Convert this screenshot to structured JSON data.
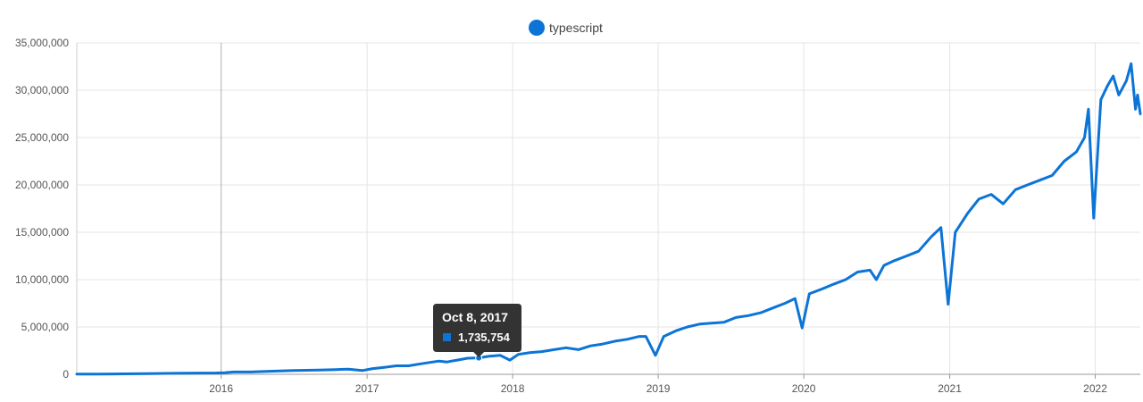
{
  "chart_data": {
    "type": "line",
    "legend_position": "top-center",
    "grid": true,
    "ylim": [
      0,
      35000000
    ],
    "xlim": [
      "2015-01-04",
      "2022-04-24"
    ],
    "y_ticks": [
      0,
      5000000,
      10000000,
      15000000,
      20000000,
      25000000,
      30000000,
      35000000
    ],
    "y_tick_labels": [
      "0",
      "5,000,000",
      "10,000,000",
      "15,000,000",
      "20,000,000",
      "25,000,000",
      "30,000,000",
      "35,000,000"
    ],
    "x_ticks": [
      "2016-01-01",
      "2017-01-01",
      "2018-01-01",
      "2019-01-01",
      "2020-01-01",
      "2021-01-01",
      "2022-01-01"
    ],
    "x_tick_labels": [
      "2016",
      "2017",
      "2018",
      "2019",
      "2020",
      "2021",
      "2022"
    ],
    "colors": {
      "series": "#0b74d6",
      "tooltip_bg": "#333333",
      "grid": "#e4e4e4",
      "axis": "#9a9a9a"
    },
    "series": [
      {
        "name": "typescript",
        "points": [
          [
            "2015-01-04",
            20000
          ],
          [
            "2015-03-01",
            30000
          ],
          [
            "2015-05-01",
            50000
          ],
          [
            "2015-07-01",
            70000
          ],
          [
            "2015-09-01",
            100000
          ],
          [
            "2015-11-01",
            130000
          ],
          [
            "2015-12-20",
            140000
          ],
          [
            "2016-01-10",
            170000
          ],
          [
            "2016-02-01",
            250000
          ],
          [
            "2016-03-15",
            250000
          ],
          [
            "2016-05-01",
            320000
          ],
          [
            "2016-07-01",
            400000
          ],
          [
            "2016-09-01",
            450000
          ],
          [
            "2016-10-15",
            500000
          ],
          [
            "2016-11-15",
            550000
          ],
          [
            "2016-12-20",
            400000
          ],
          [
            "2017-01-15",
            600000
          ],
          [
            "2017-02-15",
            750000
          ],
          [
            "2017-03-15",
            900000
          ],
          [
            "2017-04-15",
            900000
          ],
          [
            "2017-05-15",
            1100000
          ],
          [
            "2017-06-15",
            1300000
          ],
          [
            "2017-07-01",
            1400000
          ],
          [
            "2017-07-20",
            1300000
          ],
          [
            "2017-08-15",
            1500000
          ],
          [
            "2017-09-10",
            1700000
          ],
          [
            "2017-10-08",
            1735754
          ],
          [
            "2017-11-01",
            1900000
          ],
          [
            "2017-12-01",
            2000000
          ],
          [
            "2017-12-25",
            1500000
          ],
          [
            "2018-01-15",
            2100000
          ],
          [
            "2018-02-15",
            2300000
          ],
          [
            "2018-03-15",
            2400000
          ],
          [
            "2018-04-15",
            2600000
          ],
          [
            "2018-05-15",
            2800000
          ],
          [
            "2018-06-15",
            2600000
          ],
          [
            "2018-07-15",
            3000000
          ],
          [
            "2018-08-15",
            3200000
          ],
          [
            "2018-09-15",
            3500000
          ],
          [
            "2018-10-15",
            3700000
          ],
          [
            "2018-11-15",
            4000000
          ],
          [
            "2018-12-01",
            4000000
          ],
          [
            "2018-12-25",
            2000000
          ],
          [
            "2019-01-15",
            4000000
          ],
          [
            "2019-02-15",
            4600000
          ],
          [
            "2019-03-15",
            5000000
          ],
          [
            "2019-04-15",
            5300000
          ],
          [
            "2019-05-15",
            5400000
          ],
          [
            "2019-06-15",
            5500000
          ],
          [
            "2019-07-15",
            6000000
          ],
          [
            "2019-08-15",
            6200000
          ],
          [
            "2019-09-15",
            6500000
          ],
          [
            "2019-10-15",
            7000000
          ],
          [
            "2019-11-15",
            7500000
          ],
          [
            "2019-12-10",
            8000000
          ],
          [
            "2019-12-28",
            4900000
          ],
          [
            "2020-01-15",
            8500000
          ],
          [
            "2020-02-15",
            9000000
          ],
          [
            "2020-03-15",
            9500000
          ],
          [
            "2020-04-15",
            10000000
          ],
          [
            "2020-05-15",
            10800000
          ],
          [
            "2020-06-15",
            11000000
          ],
          [
            "2020-07-01",
            10000000
          ],
          [
            "2020-07-20",
            11500000
          ],
          [
            "2020-08-15",
            12000000
          ],
          [
            "2020-09-15",
            12500000
          ],
          [
            "2020-10-15",
            13000000
          ],
          [
            "2020-11-15",
            14500000
          ],
          [
            "2020-12-10",
            15500000
          ],
          [
            "2020-12-28",
            7400000
          ],
          [
            "2021-01-15",
            15000000
          ],
          [
            "2021-02-15",
            17000000
          ],
          [
            "2021-03-15",
            18500000
          ],
          [
            "2021-04-15",
            19000000
          ],
          [
            "2021-05-15",
            18000000
          ],
          [
            "2021-06-15",
            19500000
          ],
          [
            "2021-07-15",
            20000000
          ],
          [
            "2021-08-15",
            20500000
          ],
          [
            "2021-09-15",
            21000000
          ],
          [
            "2021-10-15",
            22500000
          ],
          [
            "2021-11-15",
            23500000
          ],
          [
            "2021-12-05",
            25000000
          ],
          [
            "2021-12-15",
            28000000
          ],
          [
            "2021-12-28",
            16500000
          ],
          [
            "2022-01-15",
            29000000
          ],
          [
            "2022-02-01",
            30500000
          ],
          [
            "2022-02-15",
            31500000
          ],
          [
            "2022-03-01",
            29500000
          ],
          [
            "2022-03-20",
            31000000
          ],
          [
            "2022-04-01",
            32800000
          ],
          [
            "2022-04-12",
            28000000
          ],
          [
            "2022-04-17",
            29500000
          ],
          [
            "2022-04-24",
            27500000
          ]
        ]
      }
    ],
    "tooltip": {
      "date_label": "Oct 8, 2017",
      "value_label": "1,735,754",
      "x": "2017-10-08",
      "y": 1735754
    }
  }
}
